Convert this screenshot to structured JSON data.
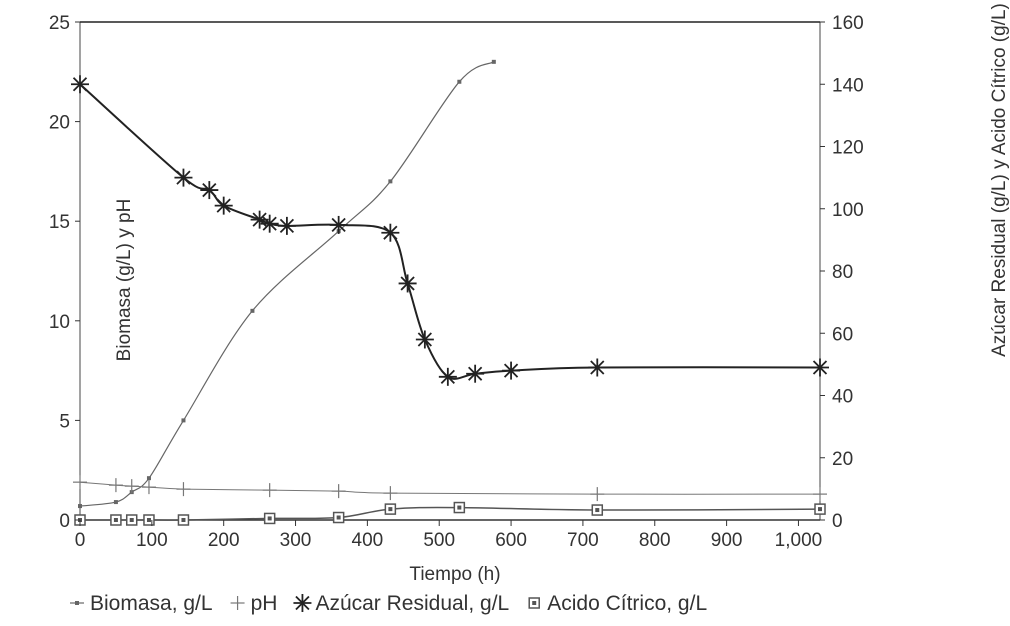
{
  "chart_data": {
    "type": "line",
    "xlabel": "Tiempo (h)",
    "ylabel_left": "Biomasa (g/L) y pH",
    "ylabel_right": "Azúcar Residual (g/L) y Acido Cítrico (g/L)",
    "xlim": [
      0,
      1030
    ],
    "ylim_left": [
      0,
      25
    ],
    "ylim_right": [
      0,
      160
    ],
    "x_ticks": [
      {
        "v": 0,
        "label": "0"
      },
      {
        "v": 100,
        "label": "100"
      },
      {
        "v": 200,
        "label": "200"
      },
      {
        "v": 300,
        "label": "300"
      },
      {
        "v": 400,
        "label": "400"
      },
      {
        "v": 500,
        "label": "500"
      },
      {
        "v": 600,
        "label": "600"
      },
      {
        "v": 700,
        "label": "700"
      },
      {
        "v": 800,
        "label": "800"
      },
      {
        "v": 900,
        "label": "900"
      },
      {
        "v": 1000,
        "label": "1,000"
      }
    ],
    "y_left_ticks": [
      {
        "v": 0,
        "label": "0"
      },
      {
        "v": 5,
        "label": "5"
      },
      {
        "v": 10,
        "label": "10"
      },
      {
        "v": 15,
        "label": "15"
      },
      {
        "v": 20,
        "label": "20"
      },
      {
        "v": 25,
        "label": "25"
      }
    ],
    "y_right_ticks": [
      {
        "v": 0,
        "label": "0"
      },
      {
        "v": 20,
        "label": "20"
      },
      {
        "v": 40,
        "label": "40"
      },
      {
        "v": 60,
        "label": "60"
      },
      {
        "v": 80,
        "label": "80"
      },
      {
        "v": 100,
        "label": "100"
      },
      {
        "v": 120,
        "label": "120"
      },
      {
        "v": 140,
        "label": "140"
      },
      {
        "v": 160,
        "label": "160"
      }
    ],
    "legend_position": "bottom",
    "series": [
      {
        "name": "Biomasa, g/L",
        "axis": "left",
        "marker": "dot",
        "color": "#666666",
        "x": [
          0,
          50,
          72,
          96,
          144,
          240,
          360,
          432,
          528,
          576
        ],
        "y": [
          0.7,
          0.9,
          1.4,
          2.1,
          5.0,
          10.5,
          14.5,
          17.0,
          22.0,
          23.0
        ]
      },
      {
        "name": "pH",
        "axis": "left",
        "marker": "plus",
        "color": "#777777",
        "x": [
          0,
          50,
          72,
          96,
          144,
          264,
          360,
          432,
          720,
          1030
        ],
        "y": [
          1.9,
          1.75,
          1.7,
          1.65,
          1.55,
          1.5,
          1.45,
          1.35,
          1.3,
          1.3
        ]
      },
      {
        "name": "Azúcar Residual, g/L",
        "axis": "right",
        "marker": "asterisk",
        "color": "#222222",
        "x": [
          0,
          144,
          180,
          200,
          250,
          264,
          288,
          360,
          432,
          456,
          480,
          512,
          550,
          600,
          720,
          1030
        ],
        "y": [
          140,
          110,
          106,
          101,
          96.5,
          95.2,
          94.5,
          94.8,
          92.3,
          76,
          58,
          46,
          47,
          48,
          49,
          49
        ]
      },
      {
        "name": "Acido Cítrico, g/L",
        "axis": "right",
        "marker": "square",
        "color": "#555555",
        "x": [
          0,
          50,
          72,
          96,
          144,
          264,
          360,
          432,
          528,
          720,
          1030
        ],
        "y": [
          0,
          0,
          0,
          0,
          0,
          0.5,
          0.8,
          3.5,
          4.0,
          3.2,
          3.5
        ]
      }
    ]
  }
}
